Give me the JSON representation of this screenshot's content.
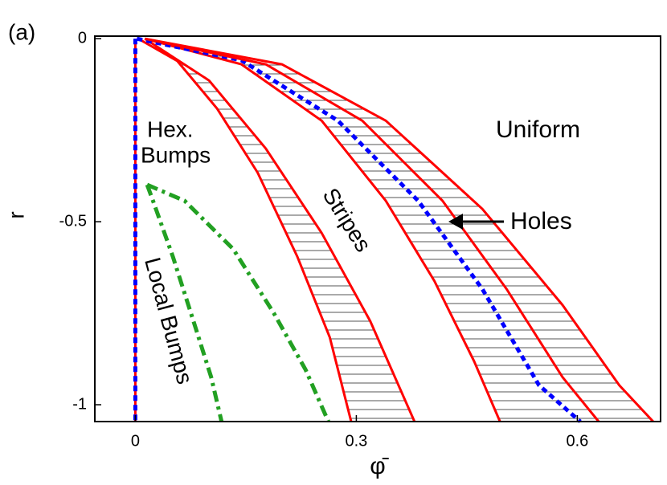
{
  "chart_data": {
    "type": "line",
    "xlabel": "φ̄",
    "ylabel": "r",
    "xlim": [
      -0.055,
      0.713
    ],
    "ylim": [
      -1.046,
      0.007
    ],
    "xticks": [
      0,
      0.3,
      0.6
    ],
    "yticks": [
      0,
      -0.5,
      -1
    ],
    "series": [
      {
        "color": "#ff0000",
        "style": "solid",
        "x": [
          0.004,
          0.057,
          0.111,
          0.166,
          0.22,
          0.264,
          0.293
        ],
        "values": [
          0,
          -0.061,
          -0.191,
          -0.366,
          -0.596,
          -0.816,
          -1.046
        ]
      },
      {
        "color": "#ff0000",
        "style": "solid",
        "x": [
          0.013,
          0.1,
          0.177,
          0.253,
          0.319,
          0.379
        ],
        "values": [
          0,
          -0.114,
          -0.3,
          -0.531,
          -0.772,
          -1.046
        ]
      },
      {
        "color": "#ff0000",
        "style": "solid",
        "x": [
          0.013,
          0.144,
          0.253,
          0.34,
          0.406,
          0.46,
          0.495
        ],
        "values": [
          0,
          -0.07,
          -0.224,
          -0.443,
          -0.662,
          -0.882,
          -1.046
        ]
      },
      {
        "color": "#0000ff",
        "style": "dotted",
        "x": [
          0.002,
          0.144,
          0.275,
          0.384,
          0.471,
          0.548,
          0.604
        ],
        "values": [
          0,
          -0.059,
          -0.224,
          -0.443,
          -0.684,
          -0.947,
          -1.046
        ]
      },
      {
        "color": "#ff0000",
        "style": "solid",
        "x": [
          0.013,
          0.177,
          0.308,
          0.417,
          0.504,
          0.58,
          0.629
        ],
        "values": [
          0,
          -0.07,
          -0.224,
          -0.443,
          -0.684,
          -0.925,
          -1.046
        ]
      },
      {
        "color": "#ff0000",
        "style": "solid",
        "x": [
          0.013,
          0.199,
          0.34,
          0.471,
          0.58,
          0.657,
          0.703
        ],
        "values": [
          0,
          -0.07,
          -0.224,
          -0.465,
          -0.728,
          -0.947,
          -1.046
        ]
      },
      {
        "color": "#ff0000",
        "style": "solid",
        "x": [
          0,
          0
        ],
        "values": [
          0,
          -1.046
        ]
      },
      {
        "color": "#0000ff",
        "style": "dotted",
        "x": [
          0,
          0
        ],
        "values": [
          0,
          -1.046
        ]
      },
      {
        "color": "#22a022",
        "style": "dashdot",
        "x": [
          0.016,
          0.024,
          0.051,
          0.079,
          0.103,
          0.117
        ],
        "values": [
          -0.399,
          -0.443,
          -0.596,
          -0.772,
          -0.925,
          -1.046
        ]
      },
      {
        "color": "#22a022",
        "style": "dashdot",
        "x": [
          0.016,
          0.067,
          0.133,
          0.188,
          0.231,
          0.262
        ],
        "values": [
          -0.399,
          -0.443,
          -0.575,
          -0.75,
          -0.904,
          -1.046
        ]
      }
    ],
    "annotations": [
      "(a)",
      "Hex.",
      "Bumps",
      "Uniform",
      "Stripes",
      "Holes",
      "Local Bumps"
    ]
  }
}
